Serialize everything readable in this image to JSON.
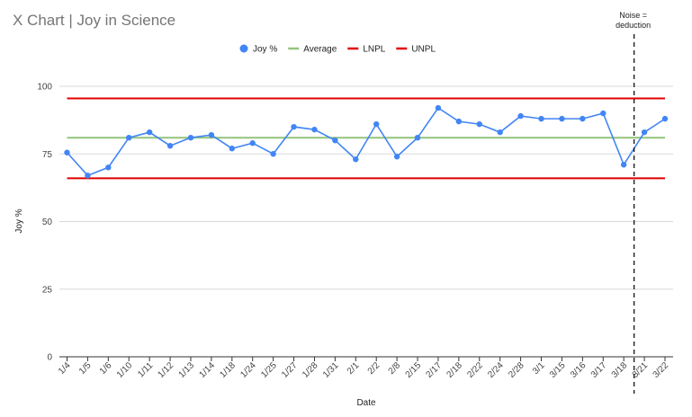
{
  "chart_data": {
    "type": "line",
    "title": "X Chart | Joy in Science",
    "xlabel": "Date",
    "ylabel": "Joy %",
    "ylim": [
      0,
      100
    ],
    "yticks": [
      0,
      25,
      50,
      75,
      100
    ],
    "grid": true,
    "legend_position": "top",
    "categories": [
      "1/4",
      "1/5",
      "1/6",
      "1/10",
      "1/11",
      "1/12",
      "1/13",
      "1/14",
      "1/18",
      "1/24",
      "1/25",
      "1/27",
      "1/28",
      "1/31",
      "2/1",
      "2/2",
      "2/8",
      "2/15",
      "2/17",
      "2/18",
      "2/22",
      "2/24",
      "2/28",
      "3/1",
      "3/15",
      "3/16",
      "3/17",
      "3/18",
      "3/21",
      "3/22"
    ],
    "series": [
      {
        "name": "Joy %",
        "color": "#4285f4",
        "marker": "circle",
        "values": [
          75.5,
          67,
          70,
          81,
          83,
          78,
          81,
          82,
          77,
          79,
          75,
          85,
          84,
          80,
          73,
          86,
          74,
          81,
          92,
          87,
          86,
          83,
          89,
          88,
          88,
          88,
          90,
          71,
          83,
          88
        ]
      },
      {
        "name": "Average",
        "color": "#93c47d",
        "constant": 81
      },
      {
        "name": "LNPL",
        "color": "#e00000",
        "constant": 66
      },
      {
        "name": "UNPL",
        "color": "#e00000",
        "constant": 95.5
      }
    ],
    "annotation": {
      "lines": [
        "Noise =",
        "deduction"
      ],
      "position_between": [
        "3/18",
        "3/21"
      ],
      "style": "dashed vertical line"
    }
  }
}
